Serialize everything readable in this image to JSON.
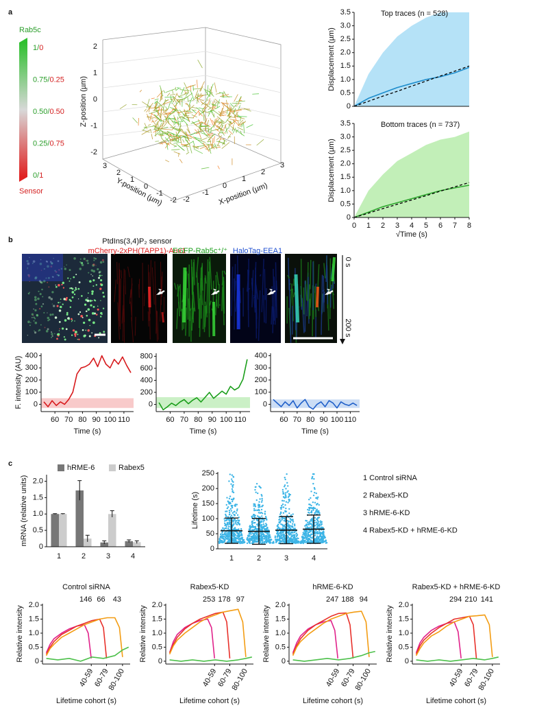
{
  "panel_labels": [
    "a",
    "b",
    "c"
  ],
  "colorbar": {
    "top_label": "Rab5c",
    "bottom_label": "Sensor",
    "separator": "/",
    "stops": [
      {
        "rab5c": "1",
        "sensor": "0"
      },
      {
        "rab5c": "0.75",
        "sensor": "0.25"
      },
      {
        "rab5c": "0.50",
        "sensor": "0.50"
      },
      {
        "rab5c": "0.25",
        "sensor": "0.75"
      },
      {
        "rab5c": "0",
        "sensor": "1"
      }
    ]
  },
  "scatter3d": {
    "zlabel": "Z-position (µm)",
    "ylabel": "Y-position (µm)",
    "xlabel": "X-position (µm)",
    "zticks": [
      2,
      1,
      0,
      -1,
      -2
    ],
    "yticks": [
      3,
      2,
      1,
      0,
      -1,
      -2
    ],
    "xticks": [
      -2,
      -1,
      0,
      1,
      2,
      3
    ]
  },
  "panel_b": {
    "sensor_title": "PtdIns(3,4)P₂ sensor",
    "channels": [
      "mCherry-2xPH(TAPP1)-Aux1",
      "EGFP-Rab5c⁺/⁺",
      "HaloTag-EEA1"
    ],
    "time_start": "0 s",
    "time_end": "200 s"
  },
  "lifetime_legend": [
    "1 Control siRNA",
    "2 Rabex5-KD",
    "3 hRME-6-KD",
    "4 Rabex5-KD + hRME-6-KD"
  ],
  "chart_data": [
    {
      "type": "line",
      "title": "Top traces (n = 528)",
      "ylabel": "Displacement (µm)",
      "x": [
        0,
        1,
        2,
        3,
        4,
        5,
        6,
        7,
        8
      ],
      "xlim": [
        0,
        8
      ],
      "ylim": [
        0,
        3.5
      ],
      "yticks": [
        0,
        0.5,
        {
          "value": 1,
          "label": "1.0"
        },
        1.5,
        {
          "value": 2,
          "label": "2.0"
        },
        2.5,
        {
          "value": 3,
          "label": "3.0"
        },
        3.5
      ],
      "series": [
        {
          "color": "#b5e2f7",
          "kind": "area",
          "values": [
            0,
            1.2,
            2.0,
            2.6,
            3.0,
            3.3,
            3.5,
            3.5,
            3.5
          ]
        },
        {
          "color": "#1c8ccc",
          "values": [
            0,
            0.3,
            0.5,
            0.7,
            0.85,
            1.0,
            1.1,
            1.25,
            1.45
          ]
        },
        {
          "color": "#000000",
          "dash": true,
          "values": [
            0,
            0.19,
            0.38,
            0.56,
            0.75,
            0.94,
            1.13,
            1.31,
            1.5
          ]
        }
      ]
    },
    {
      "type": "line",
      "title": "Bottom traces (n = 737)",
      "ylabel": "Displacement (µm)",
      "xlabel": "√Time (s)",
      "x": [
        0,
        1,
        2,
        3,
        4,
        5,
        6,
        7,
        8
      ],
      "xlim": [
        0,
        8
      ],
      "ylim": [
        0,
        3.5
      ],
      "xticks": [
        0,
        1,
        2,
        3,
        4,
        5,
        6,
        7,
        8
      ],
      "yticks": [
        0,
        0.5,
        {
          "value": 1,
          "label": "1.0"
        },
        1.5,
        {
          "value": 2,
          "label": "2.0"
        },
        2.5,
        {
          "value": 3,
          "label": "3.0"
        },
        3.5
      ],
      "series": [
        {
          "color": "#c2efb8",
          "kind": "area",
          "values": [
            0,
            1.0,
            1.6,
            2.1,
            2.4,
            2.7,
            2.9,
            3.0,
            3.2
          ]
        },
        {
          "color": "#2fa82f",
          "values": [
            0,
            0.2,
            0.4,
            0.55,
            0.7,
            0.85,
            1.0,
            1.1,
            1.2
          ]
        },
        {
          "color": "#000000",
          "dash": true,
          "values": [
            0,
            0.16,
            0.33,
            0.49,
            0.65,
            0.81,
            0.98,
            1.14,
            1.3
          ]
        }
      ]
    },
    {
      "type": "line",
      "ylabel": "F. intensity (AU)",
      "xlabel": "Time (s)",
      "x": [
        52,
        55,
        58,
        61,
        64,
        67,
        70,
        73,
        76,
        79,
        82,
        85,
        88,
        91,
        94,
        97,
        100,
        103,
        106,
        109,
        112,
        115
      ],
      "xlim": [
        50,
        117
      ],
      "ylim": [
        -60,
        420
      ],
      "xticks": [
        60,
        70,
        80,
        90,
        100,
        110
      ],
      "yticks": [
        0,
        100,
        200,
        300,
        400
      ],
      "band": [
        -30,
        50
      ],
      "band_color": "#f4a6a6",
      "series": [
        {
          "color": "#d7191c",
          "values": [
            20,
            -20,
            30,
            -10,
            20,
            0,
            40,
            100,
            250,
            300,
            310,
            330,
            380,
            310,
            400,
            330,
            300,
            370,
            330,
            390,
            320,
            260
          ]
        }
      ]
    },
    {
      "type": "line",
      "xlabel": "Time (s)",
      "x": [
        52,
        55,
        58,
        61,
        64,
        67,
        70,
        73,
        76,
        79,
        82,
        85,
        88,
        91,
        94,
        97,
        100,
        103,
        106,
        109,
        112,
        115
      ],
      "xlim": [
        50,
        117
      ],
      "ylim": [
        -120,
        850
      ],
      "xticks": [
        60,
        70,
        80,
        90,
        100,
        110
      ],
      "yticks": [
        0,
        200,
        400,
        600,
        800
      ],
      "band": [
        -60,
        120
      ],
      "band_color": "#a8e6a0",
      "series": [
        {
          "color": "#1a9e1a",
          "values": [
            30,
            -90,
            -40,
            20,
            -20,
            40,
            80,
            10,
            70,
            110,
            40,
            120,
            200,
            100,
            160,
            220,
            170,
            300,
            240,
            280,
            420,
            750
          ]
        }
      ]
    },
    {
      "type": "line",
      "xlabel": "Time (s)",
      "x": [
        52,
        55,
        58,
        61,
        64,
        67,
        70,
        73,
        76,
        79,
        82,
        85,
        88,
        91,
        94,
        97,
        100,
        103,
        106,
        109,
        112,
        115
      ],
      "xlim": [
        50,
        117
      ],
      "ylim": [
        -60,
        420
      ],
      "xticks": [
        60,
        70,
        80,
        90,
        100,
        110
      ],
      "yticks": [
        0,
        100,
        200,
        300,
        400
      ],
      "band": [
        -30,
        40
      ],
      "band_color": "#a9c6ee",
      "series": [
        {
          "color": "#1f5fc9",
          "values": [
            40,
            10,
            -20,
            20,
            -10,
            30,
            -30,
            10,
            40,
            -20,
            -40,
            0,
            20,
            -20,
            30,
            10,
            -30,
            20,
            0,
            -10,
            10,
            -10
          ]
        }
      ]
    },
    {
      "type": "bar",
      "ylabel": "mRNA (relative units)",
      "categories": [
        "1",
        "2",
        "3",
        "4"
      ],
      "ylim": [
        0,
        2.2
      ],
      "yticks": [
        0,
        0.5,
        {
          "value": 1,
          "label": "1.0"
        },
        1.5,
        {
          "value": 2,
          "label": "2.0"
        }
      ],
      "series": [
        {
          "name": "hRME-6",
          "color": "#777777",
          "values": [
            1.0,
            1.72,
            0.13,
            0.17
          ],
          "errors": [
            0.01,
            0.3,
            0.05,
            0.04
          ]
        },
        {
          "name": "Rabex5",
          "color": "#cccccc",
          "values": [
            1.0,
            0.25,
            1.0,
            0.14
          ],
          "errors": [
            0.01,
            0.1,
            0.1,
            0.04
          ]
        }
      ]
    },
    {
      "type": "errorbar",
      "ylabel": "Lifetime (s)",
      "categories": [
        "1",
        "2",
        "3",
        "4"
      ],
      "ylim": [
        0,
        255
      ],
      "yticks": [
        0,
        50,
        100,
        150,
        200,
        250
      ],
      "color": "#3cb4e6",
      "means": [
        60,
        58,
        62,
        65
      ],
      "errors": [
        42,
        43,
        45,
        47
      ]
    },
    {
      "type": "line",
      "title": "Control siRNA",
      "ylabel": "Relative intensity",
      "xlabel": "Lifetime cohort (s)",
      "xlim": [
        -5,
        110
      ],
      "ylim": [
        -0.1,
        2.05
      ],
      "yticks": [
        0,
        0.5,
        {
          "value": 1,
          "label": "1.0"
        },
        1.5,
        {
          "value": 2,
          "label": "2.0"
        }
      ],
      "xticks": [
        {
          "value": 59,
          "label": "40-59"
        },
        {
          "value": 79,
          "label": "60-79"
        },
        {
          "value": 100,
          "label": "80-100"
        }
      ],
      "counts": [
        146,
        66,
        43
      ],
      "series": [
        {
          "color": "#e0218a",
          "x": [
            0,
            5,
            10,
            20,
            30,
            40,
            50,
            55,
            59
          ],
          "values": [
            0.3,
            0.6,
            0.8,
            1.0,
            1.15,
            1.25,
            1.3,
            1.0,
            0.1
          ]
        },
        {
          "color": "#e8302a",
          "x": [
            0,
            5,
            10,
            20,
            30,
            40,
            50,
            60,
            70,
            75,
            79
          ],
          "values": [
            0.25,
            0.5,
            0.7,
            0.95,
            1.1,
            1.25,
            1.35,
            1.45,
            1.5,
            1.2,
            0.1
          ]
        },
        {
          "color": "#f39c12",
          "x": [
            0,
            5,
            10,
            20,
            30,
            40,
            50,
            60,
            70,
            80,
            90,
            96,
            100
          ],
          "values": [
            0.2,
            0.45,
            0.6,
            0.85,
            1.0,
            1.15,
            1.3,
            1.4,
            1.5,
            1.55,
            1.55,
            1.2,
            0.15
          ]
        },
        {
          "color": "#4cc04a",
          "x": [
            0,
            15,
            30,
            45,
            60,
            75,
            90,
            100,
            108
          ],
          "values": [
            0.1,
            0.05,
            0.1,
            0.0,
            0.15,
            0.1,
            0.2,
            0.4,
            0.5
          ]
        }
      ]
    },
    {
      "type": "line",
      "title": "Rabex5-KD",
      "ylabel": "Relative intensity",
      "xlabel": "Lifetime cohort (s)",
      "xlim": [
        -5,
        110
      ],
      "ylim": [
        -0.1,
        2.05
      ],
      "yticks": [
        0,
        0.5,
        {
          "value": 1,
          "label": "1.0"
        },
        1.5,
        {
          "value": 2,
          "label": "2.0"
        }
      ],
      "xticks": [
        {
          "value": 59,
          "label": "40-59"
        },
        {
          "value": 79,
          "label": "60-79"
        },
        {
          "value": 100,
          "label": "80-100"
        }
      ],
      "counts": [
        253,
        178,
        97
      ],
      "series": [
        {
          "color": "#e0218a",
          "x": [
            0,
            5,
            10,
            20,
            30,
            40,
            50,
            55,
            59
          ],
          "values": [
            0.3,
            0.7,
            0.95,
            1.2,
            1.35,
            1.45,
            1.5,
            1.2,
            0.1
          ]
        },
        {
          "color": "#e8302a",
          "x": [
            0,
            5,
            10,
            20,
            30,
            40,
            50,
            60,
            70,
            75,
            79
          ],
          "values": [
            0.3,
            0.6,
            0.85,
            1.15,
            1.35,
            1.5,
            1.6,
            1.7,
            1.75,
            1.4,
            0.1
          ]
        },
        {
          "color": "#f39c12",
          "x": [
            0,
            5,
            10,
            20,
            30,
            40,
            50,
            60,
            70,
            80,
            90,
            96,
            100
          ],
          "values": [
            0.25,
            0.55,
            0.75,
            1.0,
            1.2,
            1.4,
            1.55,
            1.65,
            1.75,
            1.8,
            1.85,
            1.4,
            0.15
          ]
        },
        {
          "color": "#4cc04a",
          "x": [
            0,
            15,
            30,
            45,
            60,
            75,
            90,
            100,
            108
          ],
          "values": [
            0.05,
            0.0,
            0.05,
            0.0,
            0.05,
            0.0,
            0.05,
            0.1,
            0.15
          ]
        }
      ]
    },
    {
      "type": "line",
      "title": "hRME-6-KD",
      "ylabel": "Relative intensity",
      "xlabel": "Lifetime cohort (s)",
      "xlim": [
        -5,
        110
      ],
      "ylim": [
        -0.1,
        2.05
      ],
      "yticks": [
        0,
        0.5,
        {
          "value": 1,
          "label": "1.0"
        },
        1.5,
        {
          "value": 2,
          "label": "2.0"
        }
      ],
      "xticks": [
        {
          "value": 59,
          "label": "40-59"
        },
        {
          "value": 79,
          "label": "60-79"
        },
        {
          "value": 100,
          "label": "80-100"
        }
      ],
      "counts": [
        247,
        188,
        94
      ],
      "series": [
        {
          "color": "#e0218a",
          "x": [
            0,
            5,
            10,
            20,
            30,
            40,
            50,
            55,
            59
          ],
          "values": [
            0.3,
            0.65,
            0.9,
            1.15,
            1.3,
            1.4,
            1.45,
            1.1,
            0.1
          ]
        },
        {
          "color": "#e8302a",
          "x": [
            0,
            5,
            10,
            20,
            30,
            40,
            50,
            60,
            70,
            75,
            79
          ],
          "values": [
            0.25,
            0.55,
            0.8,
            1.1,
            1.3,
            1.45,
            1.6,
            1.7,
            1.72,
            1.3,
            0.1
          ]
        },
        {
          "color": "#f39c12",
          "x": [
            0,
            5,
            10,
            20,
            30,
            40,
            50,
            60,
            70,
            80,
            90,
            96,
            100
          ],
          "values": [
            0.2,
            0.5,
            0.7,
            0.95,
            1.15,
            1.35,
            1.5,
            1.6,
            1.7,
            1.75,
            1.78,
            1.4,
            0.15
          ]
        },
        {
          "color": "#4cc04a",
          "x": [
            0,
            15,
            30,
            45,
            60,
            75,
            90,
            100,
            108
          ],
          "values": [
            0.05,
            0.0,
            0.05,
            0.1,
            0.05,
            0.1,
            0.2,
            0.3,
            0.35
          ]
        }
      ]
    },
    {
      "type": "line",
      "title": "Rabex5-KD + hRME-6-KD",
      "ylabel": "Relative intensity",
      "xlabel": "Lifetime cohort (s)",
      "xlim": [
        -5,
        110
      ],
      "ylim": [
        -0.1,
        2.05
      ],
      "yticks": [
        0,
        0.5,
        {
          "value": 1,
          "label": "1.0"
        },
        1.5,
        {
          "value": 2,
          "label": "2.0"
        }
      ],
      "xticks": [
        {
          "value": 59,
          "label": "40-59"
        },
        {
          "value": 79,
          "label": "60-79"
        },
        {
          "value": 100,
          "label": "80-100"
        }
      ],
      "counts": [
        294,
        210,
        141
      ],
      "series": [
        {
          "color": "#e0218a",
          "x": [
            0,
            5,
            10,
            20,
            30,
            40,
            50,
            55,
            59
          ],
          "values": [
            0.3,
            0.65,
            0.85,
            1.1,
            1.25,
            1.35,
            1.4,
            1.05,
            0.1
          ]
        },
        {
          "color": "#e8302a",
          "x": [
            0,
            5,
            10,
            20,
            30,
            40,
            50,
            60,
            70,
            75,
            79
          ],
          "values": [
            0.25,
            0.55,
            0.75,
            1.0,
            1.2,
            1.35,
            1.5,
            1.55,
            1.6,
            1.3,
            0.1
          ]
        },
        {
          "color": "#f39c12",
          "x": [
            0,
            5,
            10,
            20,
            30,
            40,
            50,
            60,
            70,
            80,
            90,
            96,
            100
          ],
          "values": [
            0.2,
            0.45,
            0.65,
            0.9,
            1.05,
            1.25,
            1.4,
            1.5,
            1.6,
            1.62,
            1.65,
            1.3,
            0.15
          ]
        },
        {
          "color": "#4cc04a",
          "x": [
            0,
            15,
            30,
            45,
            60,
            75,
            90,
            100,
            108
          ],
          "values": [
            0.05,
            0.0,
            0.05,
            0.0,
            0.05,
            0.1,
            0.05,
            0.1,
            0.15
          ]
        }
      ]
    }
  ]
}
